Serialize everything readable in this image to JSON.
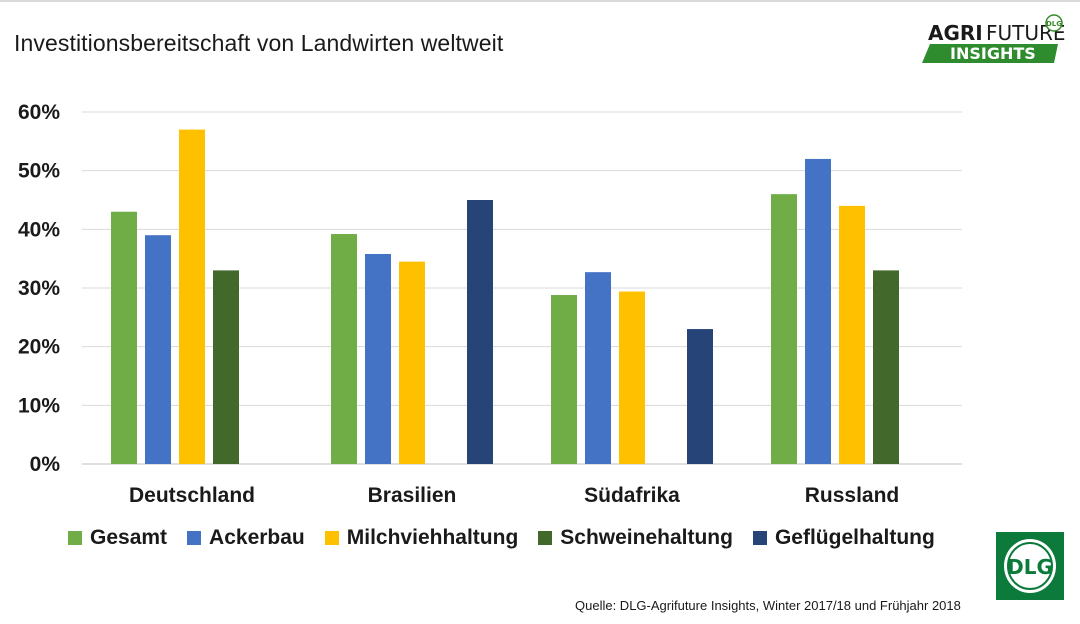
{
  "title": "Investitionsbereitschaft von Landwirten weltweit",
  "logo": {
    "line1_bold": "AGRI",
    "line1_light": "FUTURE",
    "line2": "INSIGHTS",
    "badge": "DLG"
  },
  "dlg_logo": {
    "text": "DLG"
  },
  "source": "Quelle: DLG-Agrifuture Insights, Winter 2017/18 und Frühjahr 2018",
  "colors": {
    "Gesamt": "#70ad47",
    "Ackerbau": "#4472c4",
    "Milchviehhaltung": "#ffc000",
    "Schweinehaltung": "#43682b",
    "Geflügelhaltung": "#264478",
    "brand_green": "#3a8a2a"
  },
  "chart_data": {
    "type": "bar",
    "categories": [
      "Deutschland",
      "Brasilien",
      "Südafrika",
      "Russland"
    ],
    "series": [
      {
        "name": "Gesamt",
        "values": [
          43,
          39.2,
          28.8,
          46
        ]
      },
      {
        "name": "Ackerbau",
        "values": [
          39,
          35.8,
          32.7,
          52
        ]
      },
      {
        "name": "Milchviehhaltung",
        "values": [
          57,
          34.5,
          29.4,
          44
        ]
      },
      {
        "name": "Schweinehaltung",
        "values": [
          33,
          null,
          null,
          33
        ]
      },
      {
        "name": "Geflügelhaltung",
        "values": [
          null,
          45,
          23,
          null
        ]
      }
    ],
    "yticks": [
      "0%",
      "10%",
      "20%",
      "30%",
      "40%",
      "50%",
      "60%"
    ],
    "ylim": [
      0,
      60
    ],
    "grid": true,
    "legend_position": "bottom"
  }
}
